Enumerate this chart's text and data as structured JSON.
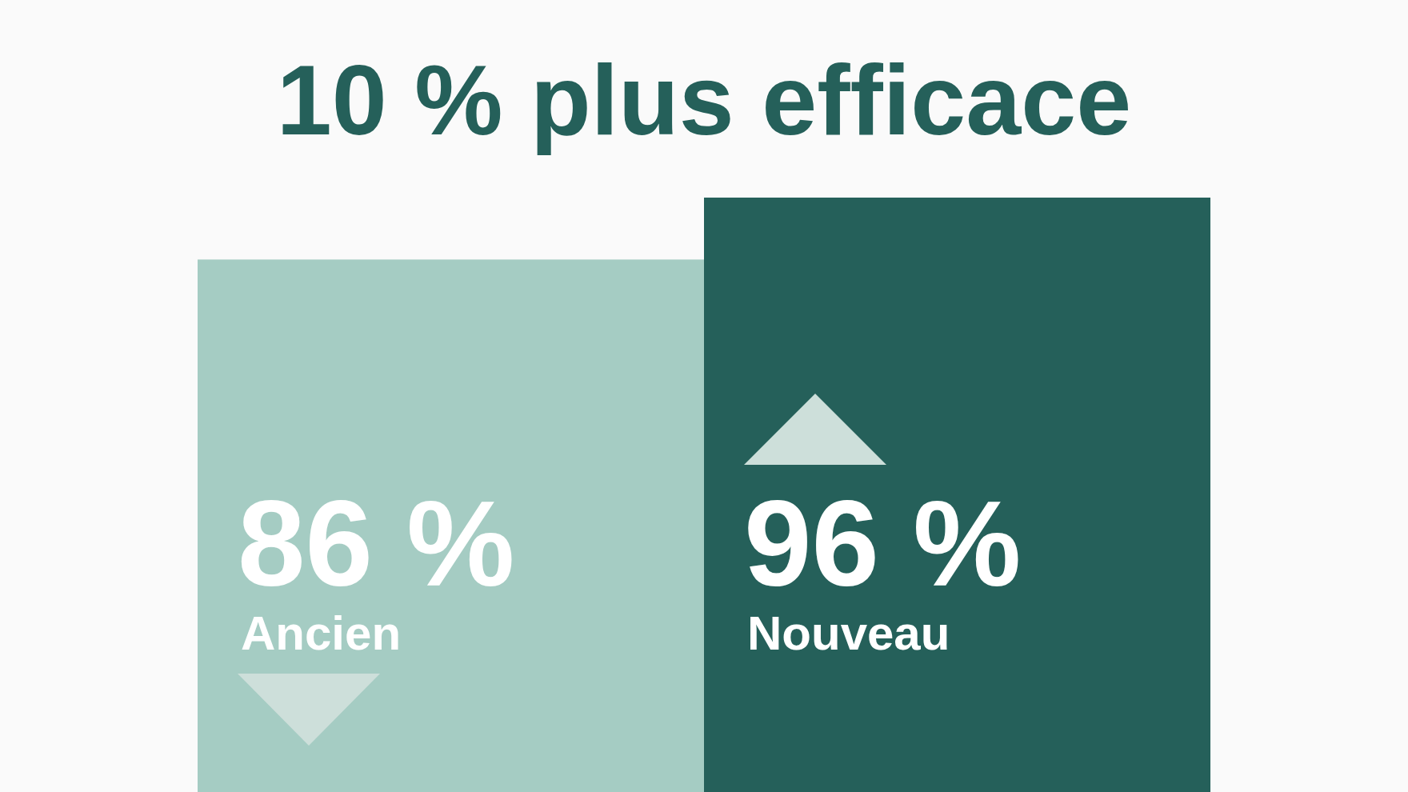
{
  "chart_data": {
    "type": "bar",
    "title": "10 % plus efficace",
    "categories": [
      "Ancien",
      "Nouveau"
    ],
    "values": [
      86,
      96
    ],
    "colors": [
      "#a5ccc3",
      "#25605a"
    ],
    "value_labels": [
      "86 %",
      "96 %"
    ]
  }
}
